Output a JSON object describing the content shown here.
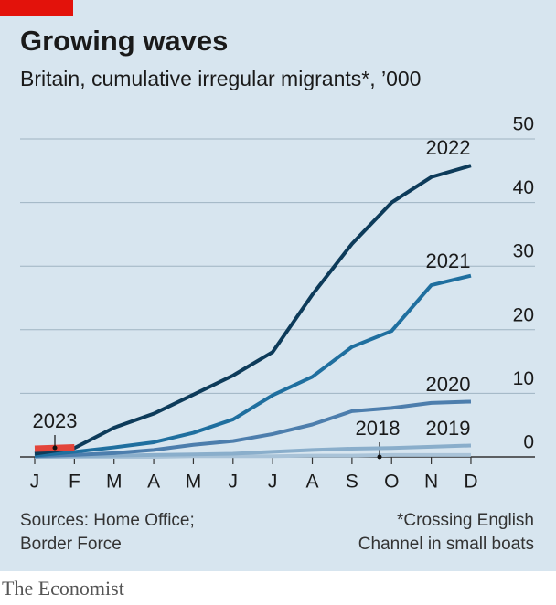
{
  "chart_data": {
    "type": "line",
    "title": "Growing waves",
    "subtitle": "Britain, cumulative irregular migrants*, ’000",
    "categories": [
      "J",
      "F",
      "M",
      "A",
      "M",
      "J",
      "J",
      "A",
      "S",
      "O",
      "N",
      "D"
    ],
    "series": [
      {
        "name": "2018",
        "color": "#a9c3d8",
        "values": [
          0,
          0,
          0,
          0,
          0.1,
          0.1,
          0.1,
          0.2,
          0.2,
          0.3,
          0.3,
          0.3
        ]
      },
      {
        "name": "2019",
        "color": "#8aaecb",
        "values": [
          0,
          0.1,
          0.2,
          0.3,
          0.4,
          0.5,
          0.8,
          1.1,
          1.3,
          1.4,
          1.6,
          1.8
        ]
      },
      {
        "name": "2020",
        "color": "#4d7ead",
        "values": [
          0.1,
          0.3,
          0.6,
          1.1,
          1.9,
          2.5,
          3.6,
          5.1,
          7.2,
          7.7,
          8.5,
          8.7
        ]
      },
      {
        "name": "2021",
        "color": "#1f6f9f",
        "values": [
          0.2,
          0.8,
          1.5,
          2.3,
          3.8,
          5.9,
          9.7,
          12.6,
          17.3,
          19.8,
          27,
          28.5
        ]
      },
      {
        "name": "2022",
        "color": "#0d3b5a",
        "values": [
          0.5,
          1.4,
          4.6,
          6.8,
          9.8,
          12.8,
          16.5,
          25.5,
          33.5,
          40,
          44,
          45.8
        ]
      },
      {
        "name": "2023",
        "color": "#e3453b",
        "values": [
          1.3,
          1.5,
          null,
          null,
          null,
          null,
          null,
          null,
          null,
          null,
          null,
          null
        ]
      }
    ],
    "ylim": [
      0,
      50
    ],
    "yticks": [
      0,
      10,
      20,
      30,
      40,
      50
    ],
    "grid": true,
    "source": [
      "Sources: Home Office;",
      "Border Force"
    ],
    "note": [
      "*Crossing English",
      "Channel in small boats"
    ],
    "brand": "The Economist"
  }
}
